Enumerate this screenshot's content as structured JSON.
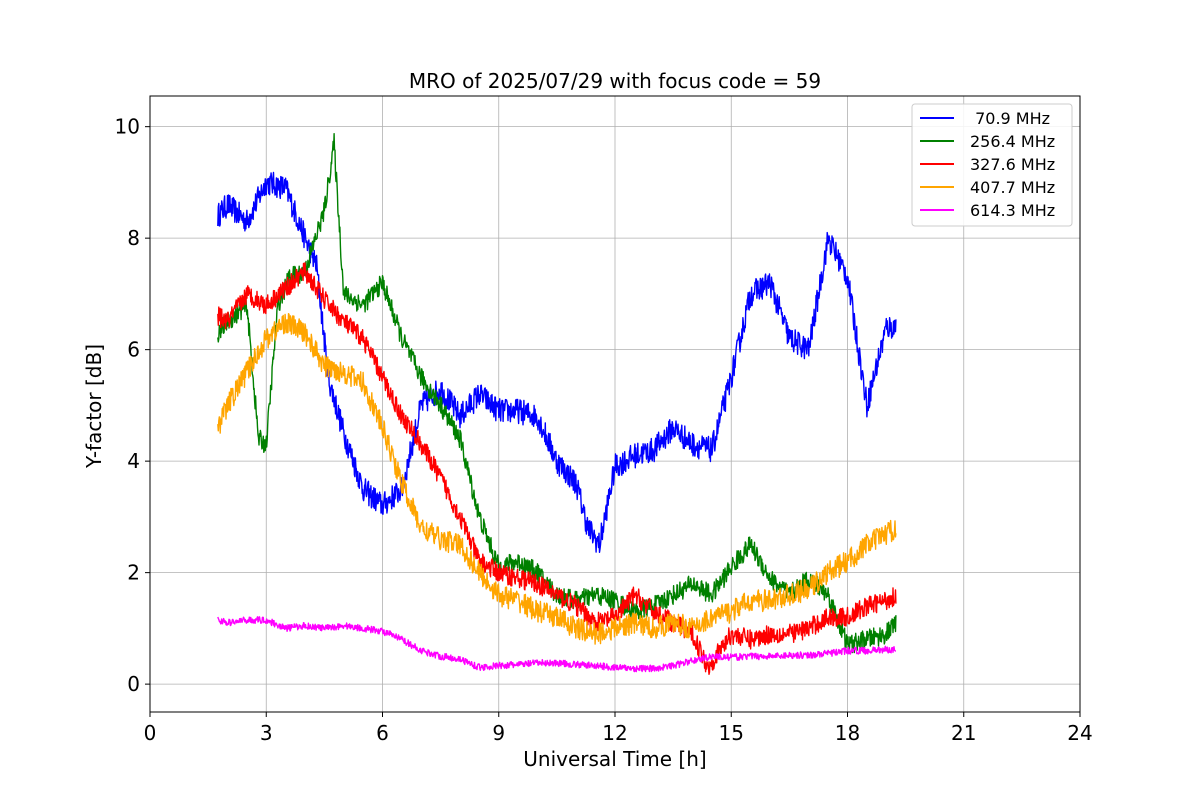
{
  "chart_data": {
    "type": "line",
    "title": "MRO of 2025/07/29 with focus code = 59",
    "xlabel": "Universal Time [h]",
    "ylabel": "Y-factor [dB]",
    "xlim": [
      0,
      24
    ],
    "ylim": [
      -0.5,
      10.55
    ],
    "xticks": [
      0,
      3,
      6,
      9,
      12,
      15,
      18,
      21,
      24
    ],
    "xtick_labels": [
      "0",
      "3",
      "6",
      "9",
      "12",
      "15",
      "18",
      "21",
      "24"
    ],
    "yticks": [
      0,
      2,
      4,
      6,
      8,
      10
    ],
    "ytick_labels": [
      "0",
      "2",
      "4",
      "6",
      "8",
      "10"
    ],
    "grid": true,
    "legend_position": "top-right",
    "series": [
      {
        "name": " 70.9 MHz",
        "color": "#0000ff",
        "noise": 0.45,
        "x": [
          1.75,
          2.0,
          2.5,
          3.0,
          3.5,
          4.0,
          4.3,
          4.6,
          5.0,
          5.5,
          6.0,
          6.5,
          7.0,
          7.5,
          8.0,
          8.5,
          9.0,
          9.5,
          10.0,
          10.5,
          11.0,
          11.3,
          11.6,
          12.0,
          12.5,
          13.0,
          13.5,
          14.0,
          14.5,
          15.0,
          15.5,
          16.0,
          16.5,
          17.0,
          17.5,
          18.0,
          18.5,
          19.0,
          19.25
        ],
        "y": [
          8.4,
          8.6,
          8.3,
          9.0,
          8.9,
          8.0,
          7.5,
          5.5,
          4.5,
          3.5,
          3.2,
          3.5,
          5.0,
          5.3,
          4.8,
          5.2,
          4.9,
          4.9,
          4.8,
          4.0,
          3.6,
          2.8,
          2.5,
          3.9,
          4.1,
          4.2,
          4.6,
          4.3,
          4.2,
          5.5,
          7.0,
          7.2,
          6.2,
          6.0,
          8.0,
          7.3,
          5.0,
          6.4,
          6.4
        ]
      },
      {
        "name": "256.4 MHz",
        "color": "#008000",
        "noise": 0.35,
        "x": [
          1.75,
          2.0,
          2.5,
          2.8,
          3.0,
          3.3,
          3.6,
          4.0,
          4.5,
          4.75,
          5.0,
          5.5,
          6.0,
          6.5,
          7.0,
          7.5,
          8.0,
          8.5,
          9.0,
          9.5,
          10.0,
          10.5,
          11.0,
          11.5,
          12.0,
          12.5,
          13.0,
          13.5,
          14.0,
          14.5,
          15.0,
          15.5,
          16.0,
          16.5,
          17.0,
          17.5,
          18.0,
          18.5,
          19.0,
          19.25
        ],
        "y": [
          6.3,
          6.5,
          6.8,
          4.4,
          4.3,
          6.8,
          7.3,
          7.4,
          8.5,
          9.7,
          7.0,
          6.8,
          7.2,
          6.2,
          5.5,
          5.0,
          4.4,
          3.0,
          2.1,
          2.2,
          2.0,
          1.6,
          1.5,
          1.6,
          1.5,
          1.3,
          1.4,
          1.6,
          1.8,
          1.6,
          2.1,
          2.5,
          1.9,
          1.6,
          1.9,
          1.6,
          0.7,
          0.8,
          0.9,
          1.1
        ]
      },
      {
        "name": "327.6 MHz",
        "color": "#ff0000",
        "noise": 0.35,
        "x": [
          1.75,
          2.0,
          2.5,
          3.0,
          3.5,
          4.0,
          4.5,
          5.0,
          5.5,
          6.0,
          6.5,
          7.0,
          7.5,
          8.0,
          8.5,
          9.0,
          9.5,
          10.0,
          10.5,
          11.0,
          11.5,
          12.0,
          12.5,
          13.0,
          13.5,
          14.0,
          14.4,
          15.0,
          15.5,
          16.0,
          16.5,
          17.0,
          17.5,
          18.0,
          18.5,
          19.0,
          19.25
        ],
        "y": [
          6.6,
          6.5,
          7.0,
          6.8,
          7.1,
          7.4,
          6.9,
          6.5,
          6.2,
          5.5,
          4.8,
          4.3,
          3.7,
          3.0,
          2.2,
          2.0,
          1.9,
          1.8,
          1.6,
          1.4,
          1.1,
          1.2,
          1.6,
          1.3,
          1.1,
          0.9,
          0.3,
          0.9,
          0.8,
          0.9,
          0.9,
          1.0,
          1.2,
          1.2,
          1.4,
          1.5,
          1.6
        ]
      },
      {
        "name": "407.7 MHz",
        "color": "#ffa500",
        "noise": 0.4,
        "x": [
          1.75,
          2.0,
          2.5,
          3.0,
          3.5,
          4.0,
          4.5,
          5.0,
          5.5,
          6.0,
          6.5,
          7.0,
          7.5,
          8.0,
          8.5,
          9.0,
          9.5,
          10.0,
          10.5,
          11.0,
          11.5,
          12.0,
          12.5,
          13.0,
          13.5,
          14.0,
          14.5,
          15.0,
          15.5,
          16.0,
          16.5,
          17.0,
          17.5,
          18.0,
          18.5,
          19.0,
          19.25
        ],
        "y": [
          4.6,
          5.0,
          5.6,
          6.2,
          6.5,
          6.3,
          5.7,
          5.6,
          5.4,
          4.6,
          3.6,
          2.8,
          2.6,
          2.5,
          2.0,
          1.6,
          1.5,
          1.3,
          1.2,
          1.0,
          0.9,
          1.0,
          1.1,
          1.0,
          1.1,
          1.0,
          1.2,
          1.3,
          1.5,
          1.5,
          1.6,
          1.7,
          2.0,
          2.2,
          2.5,
          2.7,
          2.8
        ]
      },
      {
        "name": "614.3 MHz",
        "color": "#ff00ff",
        "noise": 0.12,
        "x": [
          1.75,
          2.0,
          2.5,
          3.0,
          3.5,
          4.0,
          4.5,
          5.0,
          5.5,
          6.0,
          6.5,
          7.0,
          7.5,
          8.0,
          8.5,
          9.0,
          9.5,
          10.0,
          10.5,
          11.0,
          11.5,
          12.0,
          12.5,
          13.0,
          13.5,
          14.0,
          14.5,
          15.0,
          15.5,
          16.0,
          16.5,
          17.0,
          17.5,
          18.0,
          18.5,
          19.0,
          19.25
        ],
        "y": [
          1.15,
          1.1,
          1.15,
          1.15,
          1.0,
          1.05,
          1.0,
          1.05,
          1.0,
          0.95,
          0.8,
          0.6,
          0.5,
          0.45,
          0.3,
          0.33,
          0.35,
          0.38,
          0.38,
          0.35,
          0.33,
          0.3,
          0.28,
          0.28,
          0.33,
          0.42,
          0.5,
          0.48,
          0.5,
          0.5,
          0.52,
          0.52,
          0.55,
          0.6,
          0.6,
          0.62,
          0.62
        ]
      }
    ]
  }
}
